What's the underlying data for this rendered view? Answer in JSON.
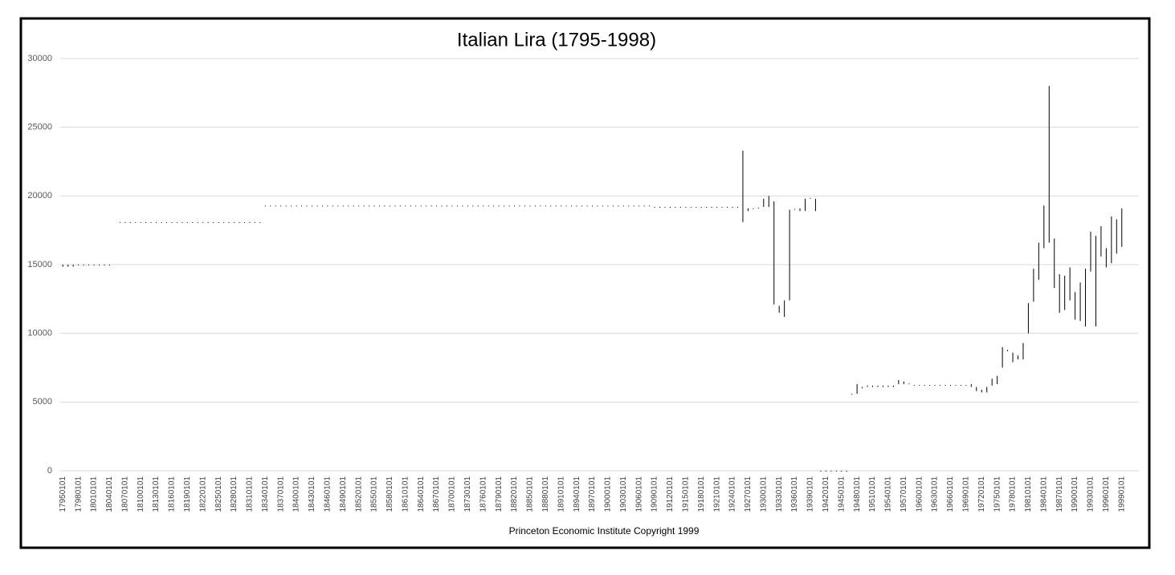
{
  "chart_data": {
    "type": "highlow",
    "title": "Italian Lira (1795-1998)",
    "caption": "Princeton Economic Institute Copyright 1999",
    "color": "#000000",
    "grid": true,
    "ylim": [
      0,
      30000
    ],
    "yticks": [
      0,
      5000,
      10000,
      15000,
      20000,
      25000,
      30000
    ],
    "categories": [
      "17950101",
      null,
      null,
      "17980101",
      null,
      null,
      "18010101",
      null,
      null,
      "18040101",
      null,
      null,
      "18070101",
      null,
      null,
      "18100101",
      null,
      null,
      "18130101",
      null,
      null,
      "18160101",
      null,
      null,
      "18190101",
      null,
      null,
      "18220101",
      null,
      null,
      "18250101",
      null,
      null,
      "18280101",
      null,
      null,
      "18310101",
      null,
      null,
      "18340101",
      null,
      null,
      "18370101",
      null,
      null,
      "18400101",
      null,
      null,
      "18430101",
      null,
      null,
      "18460101",
      null,
      null,
      "18490101",
      null,
      null,
      "18520101",
      null,
      null,
      "18550101",
      null,
      null,
      "18580101",
      null,
      null,
      "18610101",
      null,
      null,
      "18640101",
      null,
      null,
      "18670101",
      null,
      null,
      "18700101",
      null,
      null,
      "18730101",
      null,
      null,
      "18760101",
      null,
      null,
      "18790101",
      null,
      null,
      "18820101",
      null,
      null,
      "18850101",
      null,
      null,
      "18880101",
      null,
      null,
      "18910101",
      null,
      null,
      "18940101",
      null,
      null,
      "18970101",
      null,
      null,
      "19000101",
      null,
      null,
      "19030101",
      null,
      null,
      "19060101",
      null,
      null,
      "19090101",
      null,
      null,
      "19120101",
      null,
      null,
      "19150101",
      null,
      null,
      "19180101",
      null,
      null,
      "19210101",
      null,
      null,
      "19240101",
      null,
      null,
      "19270101",
      null,
      null,
      "19300101",
      null,
      null,
      "19330101",
      null,
      null,
      "19360101",
      null,
      null,
      "19390101",
      null,
      null,
      "19420101",
      null,
      null,
      "19450101",
      null,
      null,
      "19480101",
      null,
      null,
      "19510101",
      null,
      null,
      "19540101",
      null,
      null,
      "19570101",
      null,
      null,
      "19600101",
      null,
      null,
      "19630101",
      null,
      null,
      "19660101",
      null,
      null,
      "19690101",
      null,
      null,
      "19720101",
      null,
      null,
      "19750101",
      null,
      null,
      "19780101",
      null,
      null,
      "19810101",
      null,
      null,
      "19840101",
      null,
      null,
      "19870101",
      null,
      null,
      "19900101",
      null,
      null,
      "19930101",
      null,
      null,
      "19960101",
      null,
      null,
      "19990101"
    ],
    "high": [
      15000,
      15000,
      15000,
      15000,
      15000,
      15000,
      15000,
      15000,
      15000,
      15000,
      null,
      18100,
      18100,
      18100,
      18100,
      18100,
      18100,
      18100,
      18100,
      18100,
      18100,
      18100,
      18100,
      18100,
      18100,
      18100,
      18100,
      18100,
      18100,
      18100,
      18100,
      18100,
      18100,
      18100,
      18100,
      18100,
      18100,
      18100,
      18100,
      19300,
      19300,
      19300,
      19300,
      19300,
      19300,
      19300,
      19300,
      19300,
      19300,
      19300,
      19300,
      19300,
      19300,
      19300,
      19300,
      19300,
      19300,
      19300,
      19300,
      19300,
      19300,
      19300,
      19300,
      19300,
      19300,
      19300,
      19300,
      19300,
      19300,
      19300,
      19300,
      19300,
      19300,
      19300,
      19300,
      19300,
      19300,
      19300,
      19300,
      19300,
      19300,
      19300,
      19300,
      19300,
      19300,
      19300,
      19300,
      19300,
      19300,
      19300,
      19300,
      19300,
      19300,
      19300,
      19300,
      19300,
      19300,
      19300,
      19300,
      19300,
      19300,
      19300,
      19300,
      19300,
      19300,
      19300,
      19300,
      19300,
      19300,
      19300,
      19300,
      19300,
      19300,
      19300,
      19200,
      19200,
      19200,
      19200,
      19200,
      19200,
      19200,
      19200,
      19200,
      19200,
      19200,
      19200,
      19200,
      19200,
      19200,
      19200,
      19200,
      23300,
      19100,
      19100,
      19150,
      19800,
      20000,
      19600,
      12000,
      12400,
      19000,
      19050,
      19100,
      19800,
      19850,
      19800,
      0,
      0,
      0,
      0,
      0,
      0,
      5600,
      6300,
      6100,
      6200,
      6200,
      6200,
      6200,
      6200,
      6200,
      6600,
      6500,
      6350,
      6250,
      6250,
      6250,
      6250,
      6250,
      6250,
      6250,
      6250,
      6250,
      6250,
      6250,
      6300,
      6100,
      5900,
      6100,
      6700,
      6900,
      9000,
      8800,
      8600,
      8400,
      9300,
      12200,
      14700,
      16600,
      19300,
      28000,
      16900,
      14300,
      14200,
      14800,
      13000,
      13700,
      14700,
      17400,
      17100,
      17800,
      16200,
      18500,
      18300,
      19100
    ],
    "low": [
      14850,
      14850,
      14850,
      14950,
      14950,
      14950,
      14950,
      14950,
      14950,
      14950,
      null,
      18050,
      18050,
      18050,
      18050,
      18050,
      18050,
      18050,
      18050,
      18050,
      18050,
      18050,
      18050,
      18050,
      18050,
      18050,
      18050,
      18050,
      18050,
      18050,
      18050,
      18050,
      18050,
      18050,
      18050,
      18050,
      18050,
      18050,
      18050,
      19250,
      19250,
      19250,
      19250,
      19250,
      19250,
      19250,
      19250,
      19250,
      19250,
      19250,
      19250,
      19250,
      19250,
      19250,
      19250,
      19250,
      19250,
      19250,
      19250,
      19250,
      19250,
      19250,
      19250,
      19250,
      19250,
      19250,
      19250,
      19250,
      19250,
      19250,
      19250,
      19250,
      19250,
      19250,
      19250,
      19250,
      19250,
      19250,
      19250,
      19250,
      19250,
      19250,
      19250,
      19250,
      19250,
      19250,
      19250,
      19250,
      19250,
      19250,
      19250,
      19250,
      19250,
      19250,
      19250,
      19250,
      19250,
      19250,
      19250,
      19250,
      19250,
      19250,
      19250,
      19250,
      19250,
      19250,
      19250,
      19250,
      19250,
      19250,
      19250,
      19250,
      19250,
      19250,
      19150,
      19150,
      19150,
      19150,
      19150,
      19150,
      19150,
      19150,
      19150,
      19150,
      19150,
      19150,
      19150,
      19150,
      19150,
      19150,
      19150,
      18100,
      18900,
      19050,
      19100,
      19200,
      19200,
      12100,
      11500,
      11200,
      12400,
      19000,
      18900,
      18900,
      19800,
      18900,
      0,
      0,
      0,
      0,
      0,
      0,
      5550,
      5600,
      6000,
      6100,
      6100,
      6100,
      6100,
      6100,
      6100,
      6300,
      6300,
      6300,
      6200,
      6200,
      6200,
      6200,
      6200,
      6200,
      6200,
      6200,
      6200,
      6200,
      6200,
      6100,
      5800,
      5700,
      5700,
      6200,
      6300,
      7500,
      8700,
      7900,
      8100,
      8100,
      10000,
      12300,
      13900,
      16200,
      16600,
      13300,
      11500,
      11700,
      12400,
      11000,
      10900,
      10500,
      14500,
      10500,
      15600,
      14800,
      15100,
      15800,
      16300
    ]
  }
}
